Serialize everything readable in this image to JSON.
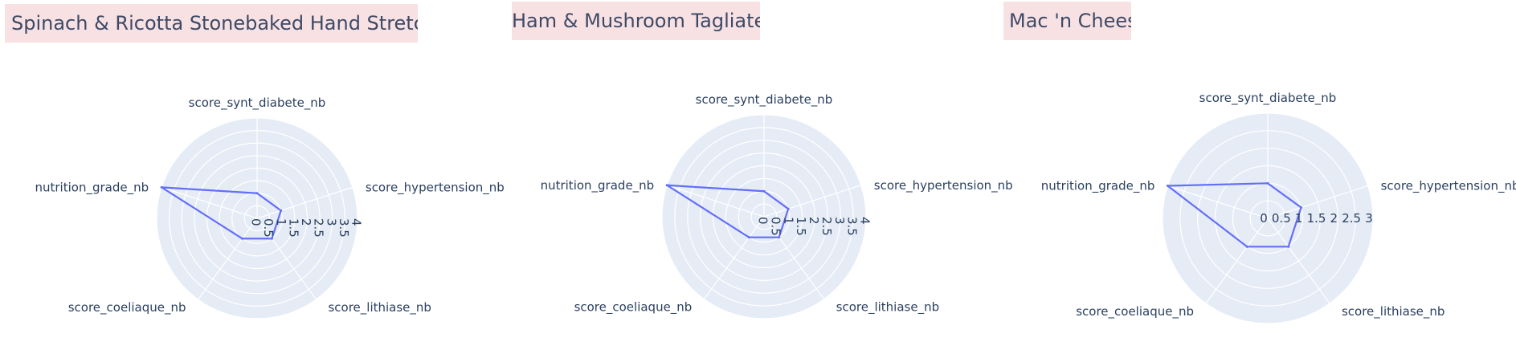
{
  "chart_data": [
    {
      "type": "radar",
      "title": "Spinach & Ricotta Stonebaked Hand Stretched Pizza",
      "axes": [
        "score_synt_diabete_nb",
        "score_hypertension_nb",
        "score_lithiase_nb",
        "score_coeliaque_nb",
        "nutrition_grade_nb"
      ],
      "values": [
        1,
        1,
        1,
        1,
        4
      ],
      "radial_range": [
        0,
        4
      ],
      "radial_ticks": [
        "0",
        "0.5",
        "1",
        "1.5",
        "2",
        "2.5",
        "3",
        "3.5",
        "4"
      ],
      "series_color": "#636efa"
    },
    {
      "type": "radar",
      "title": "Ham & Mushroom Tagliatelle",
      "axes": [
        "score_synt_diabete_nb",
        "score_hypertension_nb",
        "score_lithiase_nb",
        "score_coeliaque_nb",
        "nutrition_grade_nb"
      ],
      "values": [
        1,
        1,
        1,
        1,
        4
      ],
      "radial_range": [
        0,
        4
      ],
      "radial_ticks": [
        "0",
        "0.5",
        "1",
        "1.5",
        "2",
        "2.5",
        "3",
        "3.5",
        "4"
      ],
      "series_color": "#636efa"
    },
    {
      "type": "radar",
      "title": "Mac 'n Cheese",
      "axes": [
        "score_synt_diabete_nb",
        "score_hypertension_nb",
        "score_lithiase_nb",
        "score_coeliaque_nb",
        "nutrition_grade_nb"
      ],
      "values": [
        1,
        1,
        1,
        1,
        3
      ],
      "radial_range": [
        0,
        3
      ],
      "radial_ticks": [
        "0",
        "0.5",
        "1",
        "1.5",
        "2",
        "2.5",
        "3"
      ],
      "series_color": "#636efa"
    }
  ],
  "colors": {
    "polar_background": "#e5ecf6",
    "grid": "#ffffff",
    "title_background": "#f8e1e3",
    "title_text": "#3d4a66",
    "axis_text": "#2a3f5f"
  }
}
